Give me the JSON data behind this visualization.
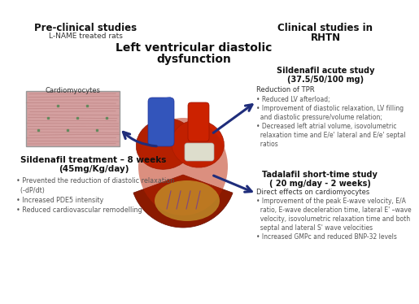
{
  "bg_color": "#ffffff",
  "title_center_line1": "Left ventricular diastolic",
  "title_center_line2": "dysfunction",
  "left_title": "Pre-clinical studies",
  "left_subtitle": "L-NAME treated rats",
  "right_title_line1": "Clinical studies in",
  "right_title_line2": "RHTN",
  "left_box_title_line1": "Sildenafil treatment – 8 weeks",
  "left_box_title_line2": "(45mg/Kg/day)",
  "left_bullets": [
    "• Prevented the reduction of diastolic relaxation",
    "  (-dP/dt)",
    "• Increased PDE5 intensity",
    "• Reduced cardiovascular remodelling"
  ],
  "right_box1_title_line1": "Sildenafil acute study",
  "right_box1_title_line2": "(37.5/50/100 mg)",
  "right_box1_label": "Reduction of TPR",
  "right_box1_bullets": [
    "• Reduced LV afterload;",
    "• Improvement of diastolic relaxation, LV filling",
    "  and diastolic pressure/volume relation;",
    "• Decreased left atrial volume, isovolumetric",
    "  relaxation time and E/e' lateral and E/e' septal",
    "  ratios"
  ],
  "right_box2_title_line1": "Tadalafil short-time study",
  "right_box2_title_line2": "( 20 mg/day - 2 weeks)",
  "right_box2_label": "Direct effects on cardiomyocytes",
  "right_box2_bullets": [
    "• Improvement of the peak E-wave velocity, E/A",
    "  ratio, E-wave deceleration time, lateral E' –wave",
    "  velocity, isovolumetric relaxation time and both",
    "  septal and lateral S' wave velocities",
    "• Increased GMPc and reduced BNP-32 levels"
  ],
  "cardiomyocytes_label": "Cardiomyocytes",
  "arrow_color": "#1f2d7b",
  "text_dark": "#111111",
  "text_mid": "#333333",
  "text_light": "#555555"
}
